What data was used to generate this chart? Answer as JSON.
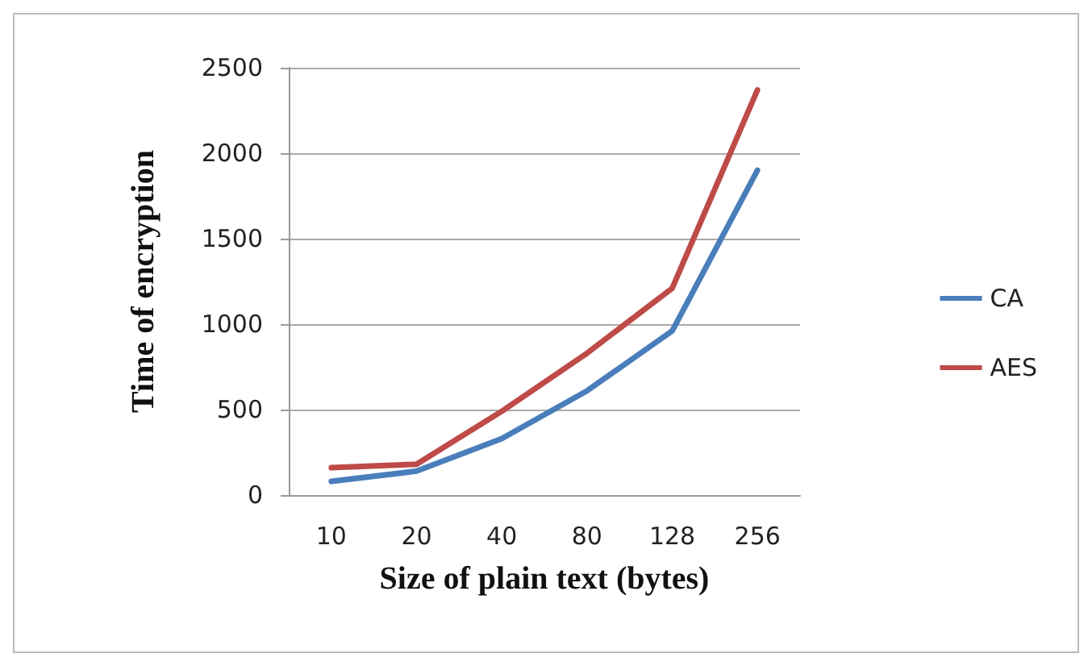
{
  "chart_data": {
    "type": "line",
    "xlabel": "Size of plain text (bytes)",
    "ylabel": "Time of encryption",
    "categories": [
      "10",
      "20",
      "40",
      "80",
      "128",
      "256"
    ],
    "series": [
      {
        "name": "CA",
        "color": "#4a7ebb",
        "values": [
          80,
          140,
          330,
          610,
          960,
          1900
        ]
      },
      {
        "name": "AES",
        "color": "#be4b48",
        "values": [
          160,
          180,
          490,
          830,
          1210,
          2370
        ]
      }
    ],
    "ylim": [
      0,
      2500
    ],
    "yticks": [
      0,
      500,
      1000,
      1500,
      2000,
      2500
    ],
    "grid": "y",
    "legend": "right",
    "marker": "none",
    "line_style": "solid"
  }
}
